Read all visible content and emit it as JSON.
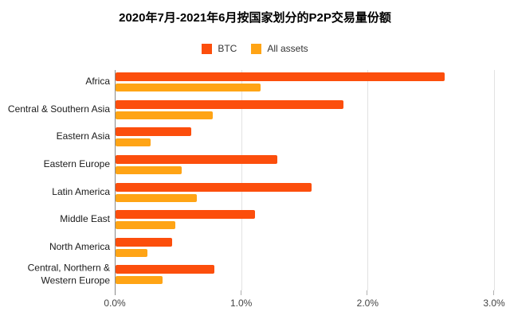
{
  "title": "2020年7月-2021年6月按国家划分的P2P交易量份额",
  "colors": {
    "background": "#FFFFFF",
    "btc": "#FC4E0C",
    "all_assets": "#FFA415",
    "axis_line": "#8A8A8A",
    "gridline": "#E2E2E2",
    "tick": "#B0B0B0",
    "title_text": "#000000",
    "label_text": "#1A1A1A",
    "tick_text": "#444444"
  },
  "chart_data": {
    "type": "bar",
    "orientation": "horizontal",
    "title": "2020年7月-2021年6月按国家划分的P2P交易量份额",
    "xlabel": "",
    "ylabel": "",
    "grid": true,
    "legend_position": "top",
    "xlim": [
      0,
      3
    ],
    "x_ticks": [
      {
        "value": 0,
        "label": "0.0%"
      },
      {
        "value": 1,
        "label": "1.0%"
      },
      {
        "value": 2,
        "label": "2.0%"
      },
      {
        "value": 3,
        "label": "3.0%"
      }
    ],
    "categories": [
      "Africa",
      "Central & Southern Asia",
      "Eastern Asia",
      "Eastern Europe",
      "Latin America",
      "Middle East",
      "North America",
      "Central, Northern & Western Europe"
    ],
    "series": [
      {
        "name": "BTC",
        "color": "#FC4E0C",
        "values": [
          2.6,
          1.8,
          0.6,
          1.28,
          1.55,
          1.1,
          0.45,
          0.78
        ]
      },
      {
        "name": "All assets",
        "color": "#FFA415",
        "values": [
          1.15,
          0.77,
          0.28,
          0.52,
          0.64,
          0.47,
          0.25,
          0.37
        ]
      }
    ]
  }
}
